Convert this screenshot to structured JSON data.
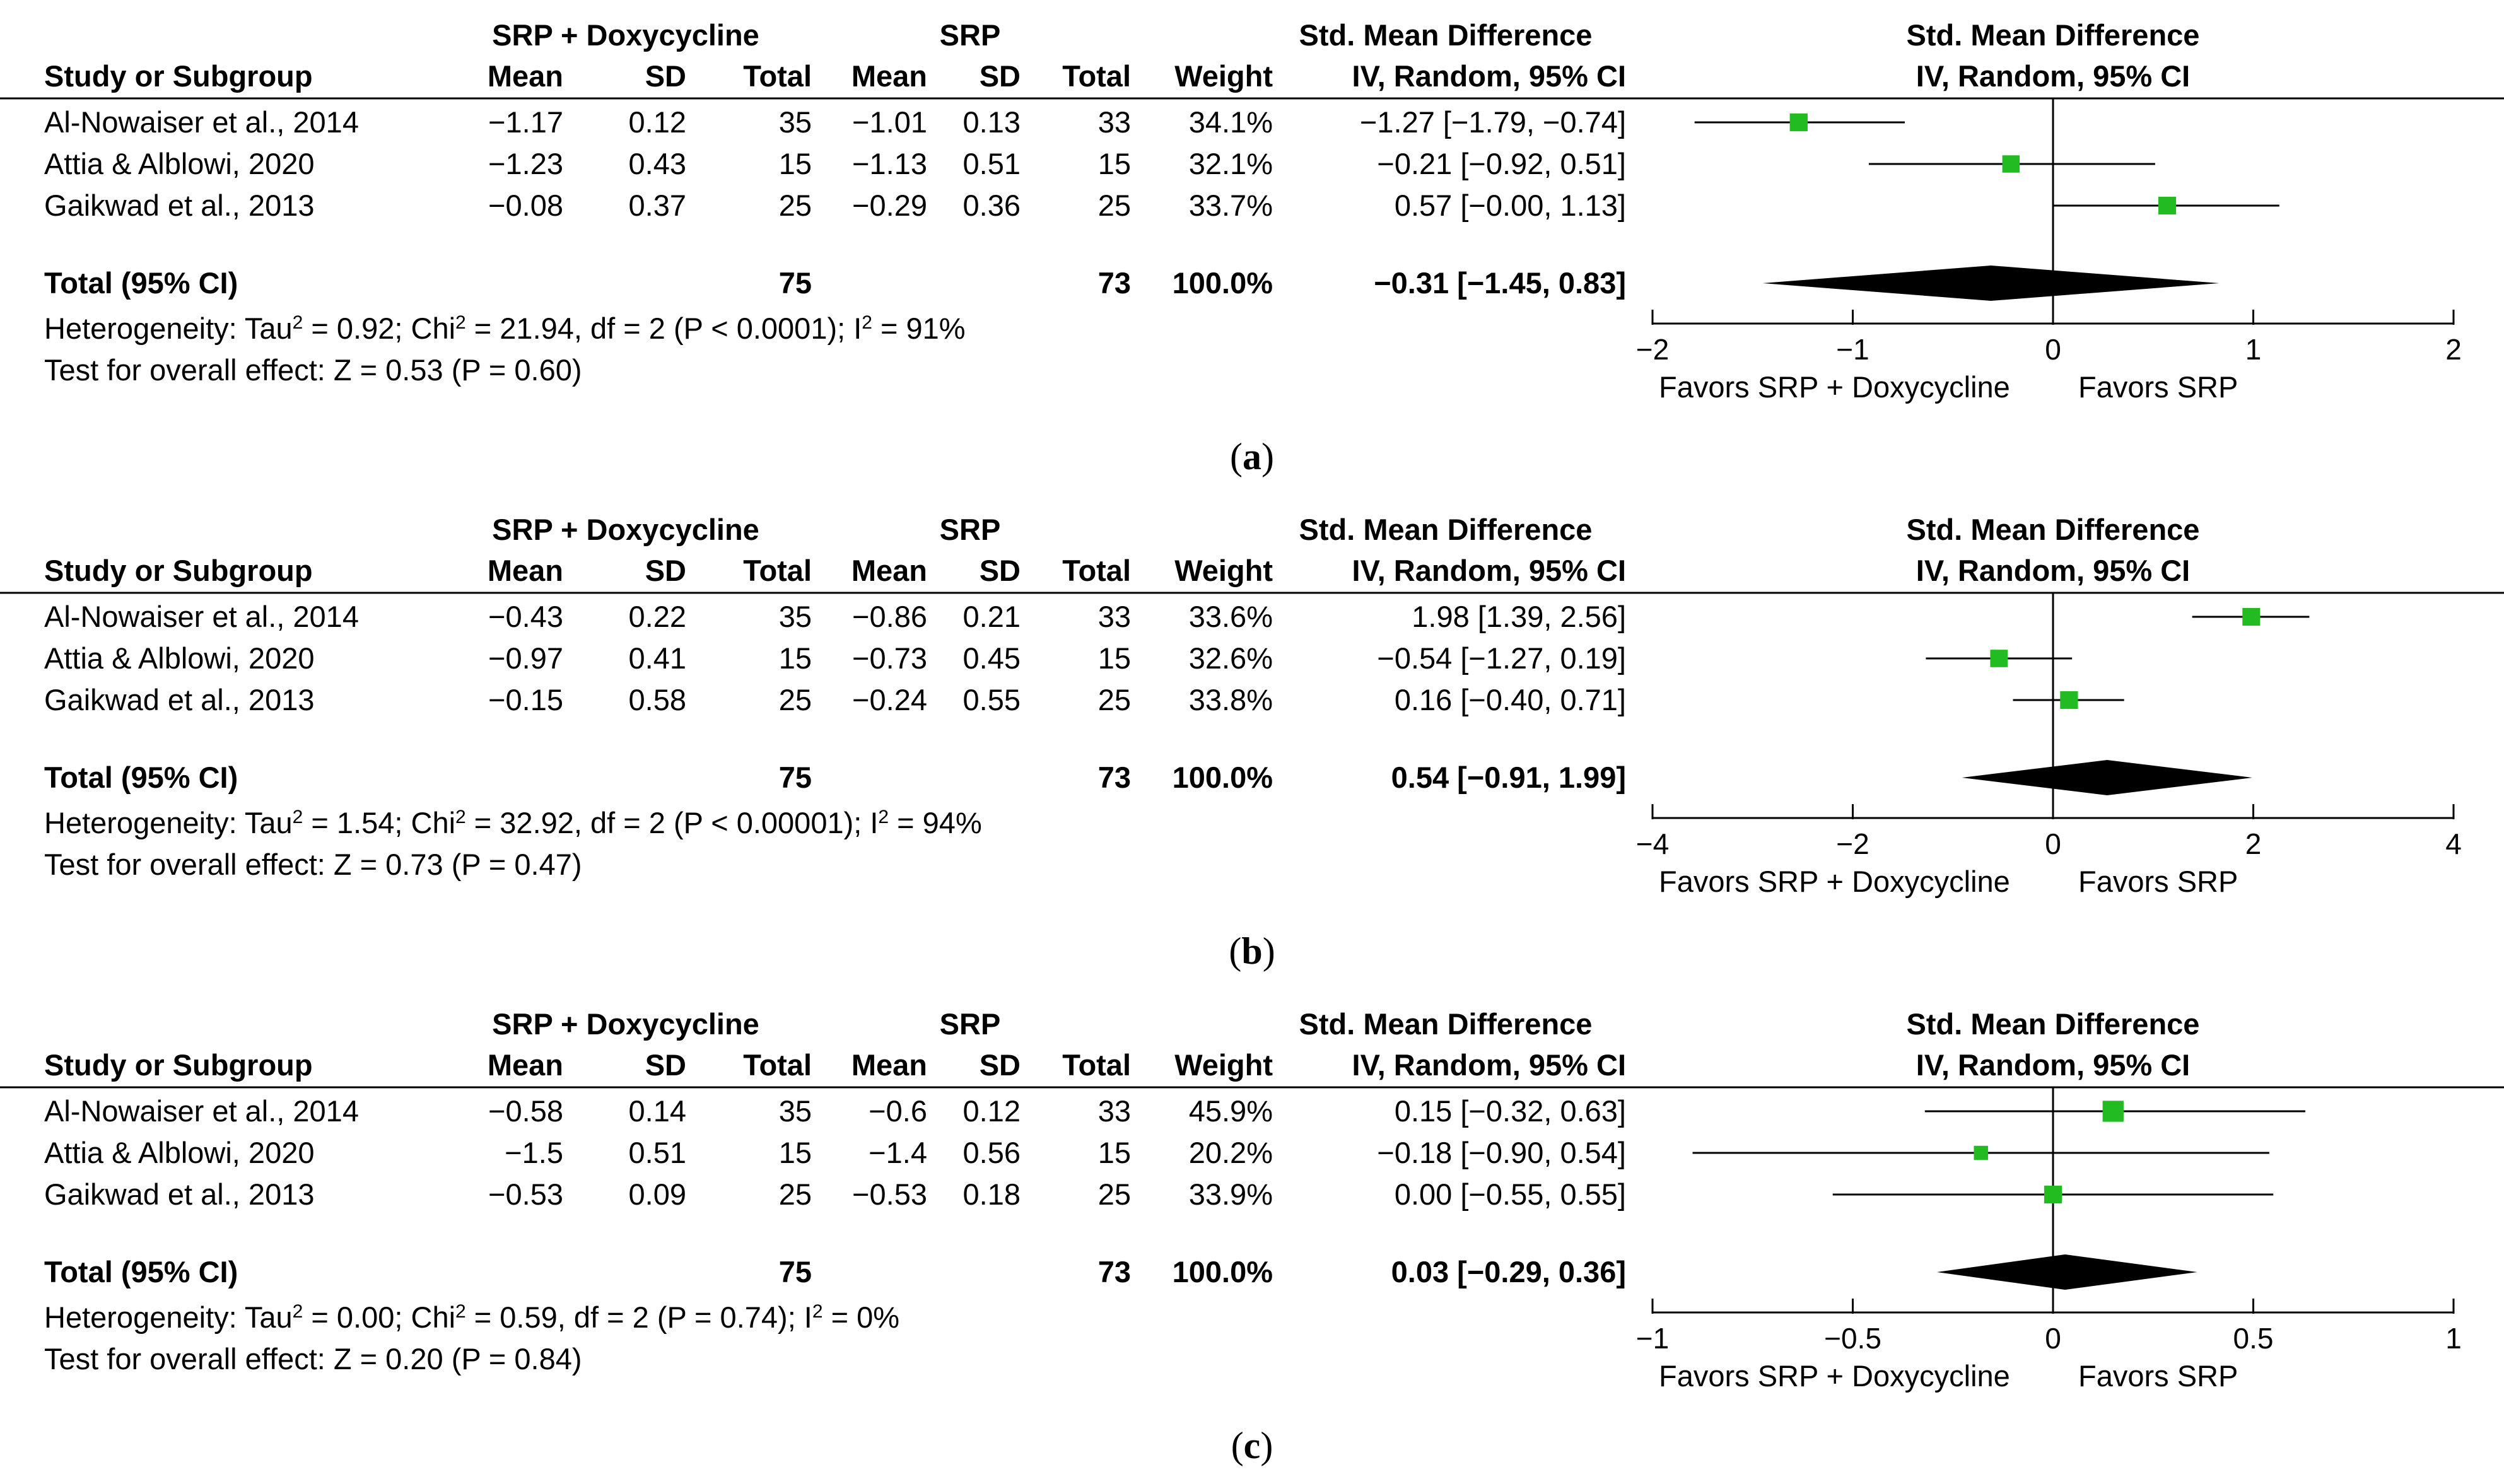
{
  "colors": {
    "marker": "#22bb22",
    "line": "#000000",
    "diamond": "#000000"
  },
  "headers": {
    "group1": "SRP + Doxycycline",
    "group2": "SRP",
    "effect_title": "Std. Mean Difference",
    "study": "Study or Subgroup",
    "mean": "Mean",
    "sd": "SD",
    "total": "Total",
    "weight": "Weight",
    "method": "IV, Random, 95% CI",
    "plot_title": "Std. Mean Difference",
    "plot_method": "IV, Random, 95% CI"
  },
  "chart_data": [
    {
      "type": "forest",
      "panel_label": "a",
      "studies": [
        {
          "name": "Al-Nowaiser et al., 2014",
          "mean1": "−1.17",
          "sd1": "0.12",
          "n1": "35",
          "mean2": "−1.01",
          "sd2": "0.13",
          "n2": "33",
          "weight": "34.1%",
          "ci_text": "−1.27 [−1.79, −0.74]",
          "est": -1.27,
          "lo": -1.79,
          "hi": -0.74,
          "w": 34.1
        },
        {
          "name": "Attia & Alblowi, 2020",
          "mean1": "−1.23",
          "sd1": "0.43",
          "n1": "15",
          "mean2": "−1.13",
          "sd2": "0.51",
          "n2": "15",
          "weight": "32.1%",
          "ci_text": "−0.21 [−0.92, 0.51]",
          "est": -0.21,
          "lo": -0.92,
          "hi": 0.51,
          "w": 32.1
        },
        {
          "name": "Gaikwad et al., 2013",
          "mean1": "−0.08",
          "sd1": "0.37",
          "n1": "25",
          "mean2": "−0.29",
          "sd2": "0.36",
          "n2": "25",
          "weight": "33.7%",
          "ci_text": "0.57 [−0.00, 1.13]",
          "est": 0.57,
          "lo": -0.0,
          "hi": 1.13,
          "w": 33.7
        }
      ],
      "total": {
        "label": "Total (95% CI)",
        "n1": "75",
        "n2": "73",
        "weight": "100.0%",
        "ci_text": "−0.31 [−1.45, 0.83]",
        "est": -0.31,
        "lo": -1.45,
        "hi": 0.83
      },
      "heterogeneity": {
        "p1": "Heterogeneity: Tau",
        "p2": " = 0.92; Chi",
        "p3": " = 21.94, df = 2 (P < 0.0001); I",
        "p4": " = 91%",
        "sup": "2"
      },
      "overall": "Test for overall effect: Z = 0.53 (P = 0.60)",
      "xlim": [
        -2,
        2
      ],
      "ticks": [
        "−2",
        "−1",
        "0",
        "1",
        "2"
      ],
      "tick_values": [
        -2,
        -1,
        0,
        1,
        2
      ],
      "favors_left": "Favors SRP + Doxycycline",
      "favors_right": "Favors SRP"
    },
    {
      "type": "forest",
      "panel_label": "b",
      "studies": [
        {
          "name": "Al-Nowaiser et al., 2014",
          "mean1": "−0.43",
          "sd1": "0.22",
          "n1": "35",
          "mean2": "−0.86",
          "sd2": "0.21",
          "n2": "33",
          "weight": "33.6%",
          "ci_text": "1.98 [1.39, 2.56]",
          "est": 1.98,
          "lo": 1.39,
          "hi": 2.56,
          "w": 33.6
        },
        {
          "name": "Attia & Alblowi, 2020",
          "mean1": "−0.97",
          "sd1": "0.41",
          "n1": "15",
          "mean2": "−0.73",
          "sd2": "0.45",
          "n2": "15",
          "weight": "32.6%",
          "ci_text": "−0.54 [−1.27, 0.19]",
          "est": -0.54,
          "lo": -1.27,
          "hi": 0.19,
          "w": 32.6
        },
        {
          "name": "Gaikwad et al., 2013",
          "mean1": "−0.15",
          "sd1": "0.58",
          "n1": "25",
          "mean2": "−0.24",
          "sd2": "0.55",
          "n2": "25",
          "weight": "33.8%",
          "ci_text": "0.16 [−0.40, 0.71]",
          "est": 0.16,
          "lo": -0.4,
          "hi": 0.71,
          "w": 33.8
        }
      ],
      "total": {
        "label": "Total (95% CI)",
        "n1": "75",
        "n2": "73",
        "weight": "100.0%",
        "ci_text": "0.54 [−0.91, 1.99]",
        "est": 0.54,
        "lo": -0.91,
        "hi": 1.99
      },
      "heterogeneity": {
        "p1": "Heterogeneity: Tau",
        "p2": " = 1.54; Chi",
        "p3": " = 32.92, df = 2 (P < 0.00001); I",
        "p4": " = 94%",
        "sup": "2"
      },
      "overall": "Test for overall effect: Z = 0.73 (P = 0.47)",
      "xlim": [
        -4,
        4
      ],
      "ticks": [
        "−4",
        "−2",
        "0",
        "2",
        "4"
      ],
      "tick_values": [
        -4,
        -2,
        0,
        2,
        4
      ],
      "favors_left": "Favors SRP + Doxycycline",
      "favors_right": "Favors SRP"
    },
    {
      "type": "forest",
      "panel_label": "c",
      "studies": [
        {
          "name": "Al-Nowaiser et al., 2014",
          "mean1": "−0.58",
          "sd1": "0.14",
          "n1": "35",
          "mean2": "−0.6",
          "sd2": "0.12",
          "n2": "33",
          "weight": "45.9%",
          "ci_text": "0.15 [−0.32, 0.63]",
          "est": 0.15,
          "lo": -0.32,
          "hi": 0.63,
          "w": 45.9
        },
        {
          "name": "Attia & Alblowi, 2020",
          "mean1": "−1.5",
          "sd1": "0.51",
          "n1": "15",
          "mean2": "−1.4",
          "sd2": "0.56",
          "n2": "15",
          "weight": "20.2%",
          "ci_text": "−0.18 [−0.90, 0.54]",
          "est": -0.18,
          "lo": -0.9,
          "hi": 0.54,
          "w": 20.2
        },
        {
          "name": "Gaikwad et al., 2013",
          "mean1": "−0.53",
          "sd1": "0.09",
          "n1": "25",
          "mean2": "−0.53",
          "sd2": "0.18",
          "n2": "25",
          "weight": "33.9%",
          "ci_text": "0.00 [−0.55, 0.55]",
          "est": 0.0,
          "lo": -0.55,
          "hi": 0.55,
          "w": 33.9
        }
      ],
      "total": {
        "label": "Total (95% CI)",
        "n1": "75",
        "n2": "73",
        "weight": "100.0%",
        "ci_text": "0.03 [−0.29, 0.36]",
        "est": 0.03,
        "lo": -0.29,
        "hi": 0.36
      },
      "heterogeneity": {
        "p1": "Heterogeneity: Tau",
        "p2": " = 0.00; Chi",
        "p3": " = 0.59, df = 2 (P = 0.74); I",
        "p4": " = 0%",
        "sup": "2"
      },
      "overall": "Test for overall effect: Z = 0.20 (P = 0.84)",
      "xlim": [
        -1,
        1
      ],
      "ticks": [
        "−1",
        "−0.5",
        "0",
        "0.5",
        "1"
      ],
      "tick_values": [
        -1,
        -0.5,
        0,
        0.5,
        1
      ],
      "favors_left": "Favors SRP + Doxycycline",
      "favors_right": "Favors SRP"
    }
  ]
}
